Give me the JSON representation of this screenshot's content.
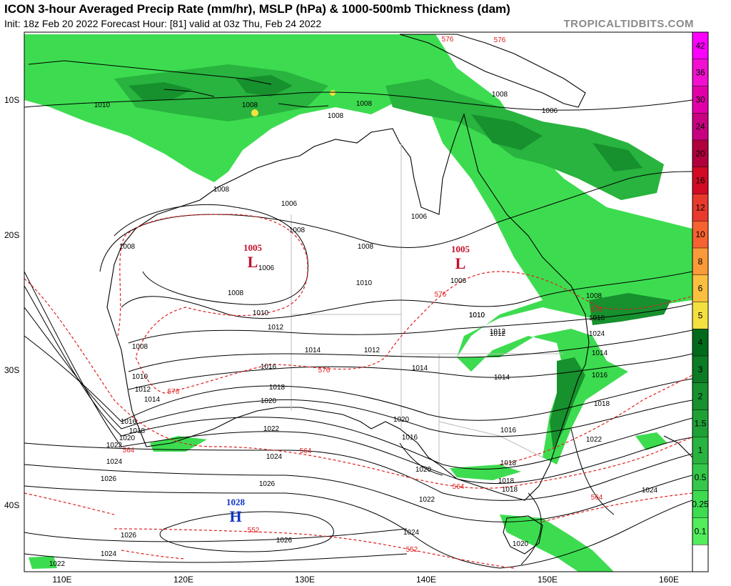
{
  "header": {
    "title": "ICON 3-hour Averaged Precip Rate (mm/hr), MSLP (hPa) & 1000-500mb Thickness (dam)",
    "subtitle": "Init: 18z Feb 20 2022   Forecast Hour: [81]   valid at 03z Thu, Feb 24 2022",
    "brand": "TROPICALTIDBITS.COM"
  },
  "axes": {
    "lat_labels": [
      "10S",
      "20S",
      "30S",
      "40S"
    ],
    "lon_labels": [
      "110E",
      "120E",
      "130E",
      "140E",
      "150E",
      "160E"
    ]
  },
  "colorbar": {
    "ticks": [
      "42",
      "36",
      "30",
      "24",
      "20",
      "16",
      "12",
      "10",
      "8",
      "6",
      "5",
      "4",
      "3",
      "2",
      "1.5",
      "1",
      "0.5",
      "0.25",
      "0.1"
    ],
    "colors": [
      "#ff00ff",
      "#f20fd0",
      "#e100a8",
      "#c90080",
      "#b2003c",
      "#d20a24",
      "#e8392c",
      "#f76230",
      "#fb9a38",
      "#fbc040",
      "#f4e040",
      "#006a1c",
      "#0b7b24",
      "#17902e",
      "#1fa035",
      "#28b43e",
      "#34c84a",
      "#3ddc50",
      "#52ec5c",
      "#ffffff"
    ]
  },
  "pressure_centers": [
    {
      "type": "L",
      "value": "1005",
      "color": "#c4102c"
    },
    {
      "type": "L",
      "value": "1005",
      "color": "#c4102c"
    },
    {
      "type": "H",
      "value": "1028",
      "color": "#1034c8"
    }
  ],
  "isobar_labels": [
    "1010",
    "1008",
    "1008",
    "1008",
    "1008",
    "1006",
    "1006",
    "1008",
    "1008",
    "1008",
    "1006",
    "1006",
    "1008",
    "1006",
    "1008",
    "1010",
    "1010",
    "1010",
    "1012",
    "1008",
    "1012",
    "1014",
    "1012",
    "1014",
    "1016",
    "1010",
    "1012",
    "1014",
    "1018",
    "1020",
    "1016",
    "1018",
    "1020",
    "1022",
    "1024",
    "1026",
    "1022",
    "1024",
    "1026",
    "1026",
    "1024",
    "1022",
    "1024",
    "1026",
    "1024",
    "1022",
    "1020",
    "1018",
    "1016",
    "1014",
    "1016",
    "1018",
    "1020",
    "1018",
    "1024",
    "1020",
    "1016",
    "1014",
    "1018",
    "1016",
    "1012",
    "1010",
    "1008",
    "1022"
  ],
  "thickness_labels": [
    "576",
    "576",
    "576",
    "576",
    "576",
    "576",
    "564",
    "564",
    "564",
    "564",
    "552",
    "552"
  ]
}
